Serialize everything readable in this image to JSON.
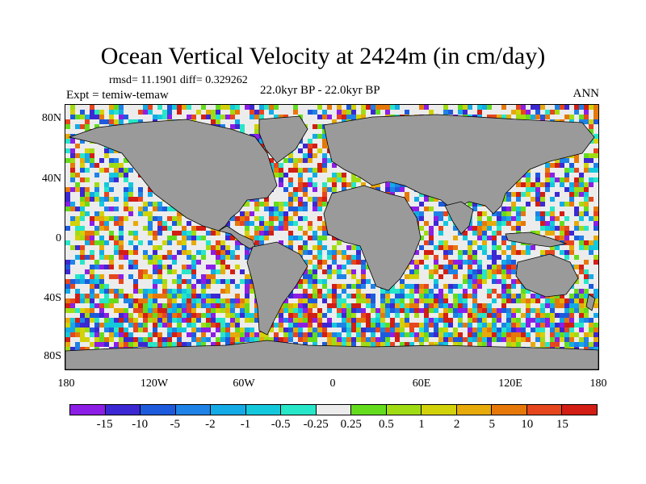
{
  "title": "Ocean Vertical Velocity at 2424m (in cm/day)",
  "stats": "rmsd= 11.1901 diff= 0.329262",
  "experiment": "Expt = temiw-temaw",
  "period": "22.0kyr BP - 22.0kyr BP",
  "season": "ANN",
  "lat_labels": [
    "80N",
    "40N",
    "0",
    "40S",
    "80S"
  ],
  "lon_labels": [
    "180",
    "120W",
    "60W",
    "0",
    "60E",
    "120E",
    "180"
  ],
  "colorbar": {
    "labels": [
      "-15",
      "-10",
      "-5",
      "-2",
      "-1",
      "-0.5",
      "-0.25",
      "0.25",
      "0.5",
      "1",
      "2",
      "5",
      "10",
      "15"
    ],
    "colors": [
      "#8c1ee6",
      "#3c28d2",
      "#1e5adc",
      "#1e82e6",
      "#14aae6",
      "#14c8dc",
      "#28e6c8",
      "#ececec",
      "#64dc1e",
      "#a0dc14",
      "#d2d20a",
      "#e6aa0a",
      "#e6780a",
      "#e6461e",
      "#d21e14"
    ]
  },
  "colors": {
    "land": "#9a9a9a",
    "frame": "#000000"
  }
}
